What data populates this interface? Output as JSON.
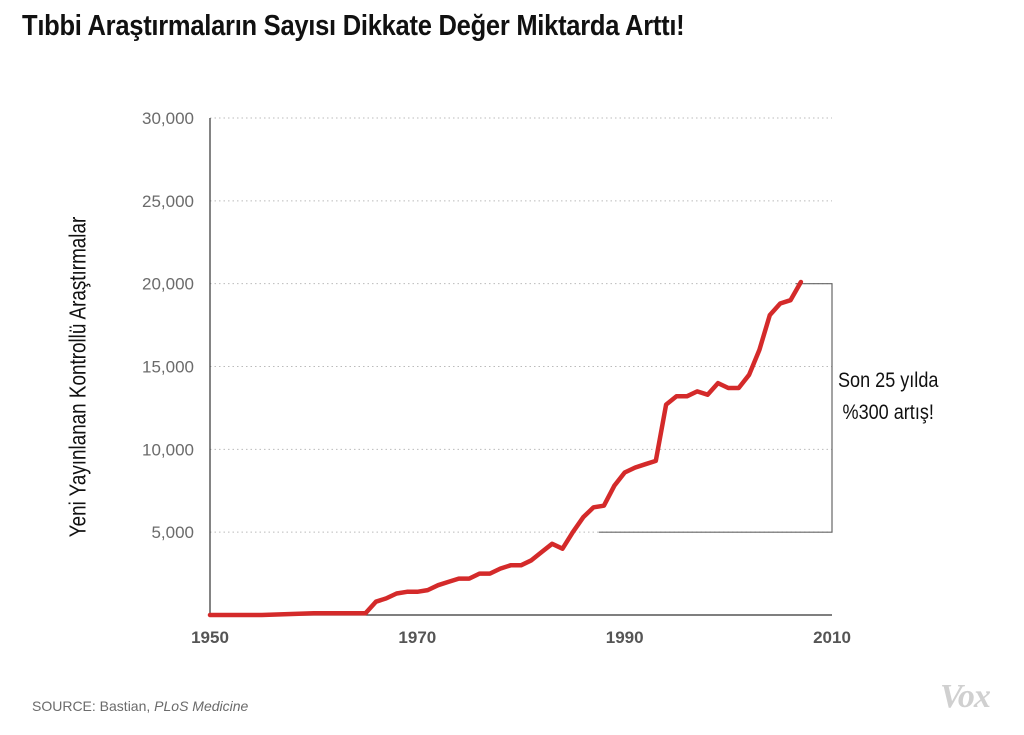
{
  "title": "Tıbbi Araştırmaların Sayısı Dikkate Değer Miktarda Arttı!",
  "source": {
    "prefix": "SOURCE: Bastian, ",
    "publication": "PLoS Medicine"
  },
  "logo": "Vox",
  "annotation": {
    "line1": "Son 25 yılda",
    "line2": "%300 artış!",
    "from_value": 5000,
    "to_value": 20000
  },
  "colors": {
    "line": "#d42a2a",
    "axis": "#333333",
    "grid": "#bbbbbb",
    "bracket": "#666666"
  },
  "chart_data": {
    "type": "line",
    "title": "Tıbbi Araştırmaların Sayısı Dikkate Değer Miktarda Arttı!",
    "xlabel": "",
    "ylabel": "Yeni Yayınlanan Kontrollü Araştırmalar",
    "xlim": [
      1950,
      2010
    ],
    "ylim": [
      0,
      30000
    ],
    "x_ticks": [
      1950,
      1970,
      1990,
      2010
    ],
    "x_tick_labels": [
      "1950",
      "1970",
      "1990",
      "2010"
    ],
    "y_ticks": [
      5000,
      10000,
      15000,
      20000,
      25000,
      30000
    ],
    "y_tick_labels": [
      "5,000",
      "10,000",
      "15,000",
      "20,000",
      "25,000",
      "30,000"
    ],
    "grid": "horizontal dotted",
    "series": [
      {
        "x": [
          1950,
          1955,
          1960,
          1965,
          1966,
          1967,
          1968,
          1969,
          1970,
          1971,
          1972,
          1973,
          1974,
          1975,
          1976,
          1977,
          1978,
          1979,
          1980,
          1981,
          1982,
          1983,
          1984,
          1985,
          1986,
          1987,
          1988,
          1989,
          1990,
          1991,
          1992,
          1993,
          1994,
          1995,
          1996,
          1997,
          1998,
          1999,
          2000,
          2001,
          2002,
          2003,
          2004,
          2005,
          2006,
          2007
        ],
        "values": [
          0,
          0,
          100,
          100,
          800,
          1000,
          1300,
          1400,
          1400,
          1500,
          1800,
          2000,
          2200,
          2200,
          2500,
          2500,
          2800,
          3000,
          3000,
          3300,
          3800,
          4300,
          4000,
          5000,
          5900,
          6500,
          6600,
          7800,
          8600,
          8900,
          9100,
          9300,
          12700,
          13200,
          13200,
          13500,
          13300,
          14000,
          13700,
          13700,
          14500,
          16000,
          18100,
          18800,
          19000,
          20100
        ]
      }
    ]
  }
}
